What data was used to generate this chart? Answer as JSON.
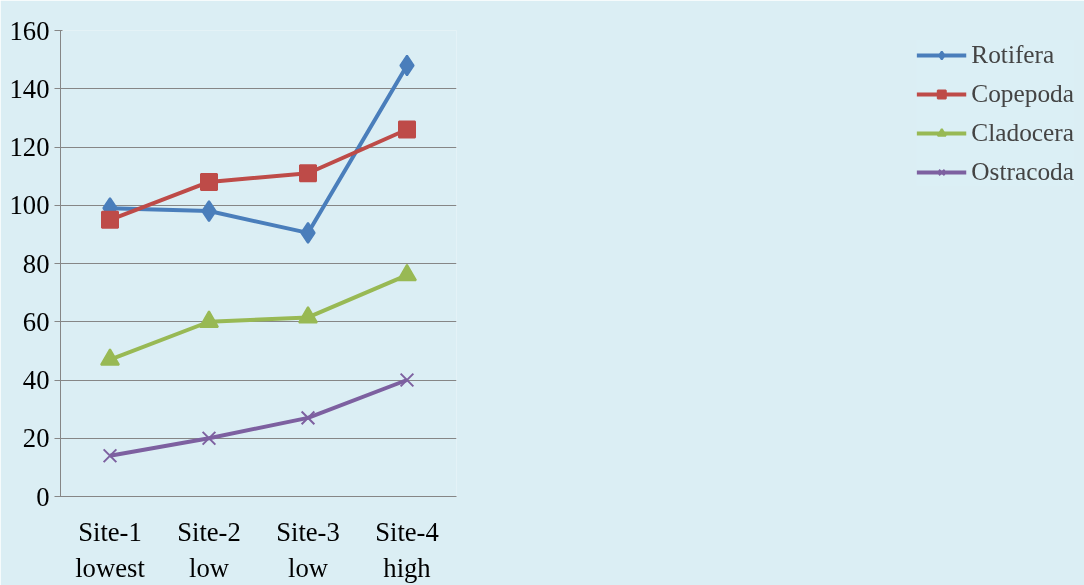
{
  "chart_data": {
    "type": "line",
    "categories": [
      "Site-1\nlowest",
      "Site-2\nlow",
      "Site-3\nlow",
      "Site-4\nhigh"
    ],
    "ylim": [
      0,
      160
    ],
    "yticks": [
      0,
      20,
      40,
      60,
      80,
      100,
      120,
      140,
      160
    ],
    "grid": "y",
    "legend": "right",
    "line_style": "solid",
    "series": [
      {
        "name": "Rotifera",
        "color": "#4a7ebb",
        "marker": "diamond",
        "values": [
          99,
          98,
          90.5,
          148
        ]
      },
      {
        "name": "Copepoda",
        "color": "#be4b48",
        "marker": "square",
        "values": [
          95,
          108,
          111,
          126
        ]
      },
      {
        "name": "Cladocera",
        "color": "#98b954",
        "marker": "triangle",
        "values": [
          47,
          60,
          61.5,
          76
        ]
      },
      {
        "name": "Ostracoda",
        "color": "#7d60a0",
        "marker": "cross",
        "values": [
          14,
          20,
          27,
          40
        ]
      }
    ]
  }
}
